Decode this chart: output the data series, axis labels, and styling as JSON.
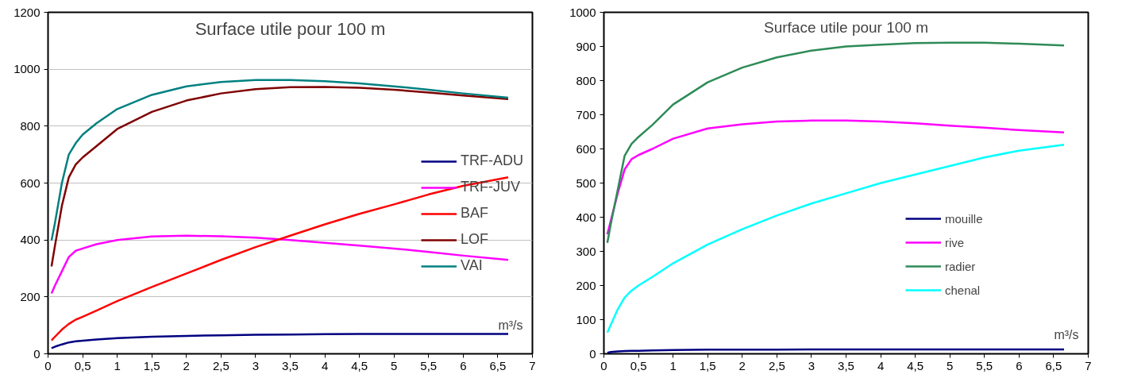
{
  "chart_data": [
    {
      "type": "line",
      "title": "Surface utile pour 100 m",
      "xlabel": "m³/s",
      "x": [
        0.05,
        0.1,
        0.2,
        0.3,
        0.4,
        0.5,
        0.7,
        1,
        1.5,
        2,
        2.5,
        3,
        3.5,
        4,
        4.5,
        5,
        5.5,
        6,
        6.65
      ],
      "series": [
        {
          "name": "TRF-ADU",
          "color": "#000080",
          "values": [
            20,
            25,
            33,
            40,
            44,
            46,
            50,
            55,
            60,
            63,
            65,
            67,
            68,
            69,
            70,
            70,
            70,
            70,
            70
          ]
        },
        {
          "name": "TRF-JUV",
          "color": "#ff00ff",
          "values": [
            212,
            240,
            290,
            340,
            362,
            370,
            385,
            400,
            412,
            415,
            413,
            408,
            400,
            390,
            380,
            370,
            358,
            345,
            330
          ]
        },
        {
          "name": "BAF",
          "color": "#ff0000",
          "values": [
            47,
            60,
            85,
            105,
            120,
            130,
            152,
            185,
            235,
            282,
            330,
            375,
            415,
            455,
            492,
            525,
            560,
            590,
            620
          ]
        },
        {
          "name": "LOF",
          "color": "#800000",
          "values": [
            307,
            380,
            520,
            620,
            665,
            690,
            730,
            790,
            850,
            890,
            915,
            930,
            937,
            938,
            935,
            928,
            918,
            908,
            895
          ]
        },
        {
          "name": "VAI",
          "color": "#008080",
          "values": [
            398,
            460,
            600,
            700,
            740,
            770,
            810,
            860,
            910,
            940,
            955,
            962,
            962,
            958,
            950,
            940,
            928,
            915,
            900
          ]
        }
      ],
      "xlim": [
        0,
        7
      ],
      "xticks": [
        0,
        {
          "value": 0.5,
          "label": "0,5"
        },
        1,
        {
          "value": 1.5,
          "label": "1,5"
        },
        2,
        {
          "value": 2.5,
          "label": "2,5"
        },
        3,
        {
          "value": 3.5,
          "label": "3,5"
        },
        4,
        {
          "value": 4.5,
          "label": "4,5"
        },
        5,
        {
          "value": 5.5,
          "label": "5,5"
        },
        6,
        {
          "value": 6.5,
          "label": "6,5"
        },
        7
      ],
      "ylim": [
        0,
        1200
      ],
      "yticks": [
        0,
        200,
        400,
        600,
        800,
        1000,
        1200
      ],
      "grid": "y",
      "legend": "right",
      "marker": "none",
      "line_style": "solid"
    },
    {
      "type": "line",
      "title": "Surface utile pour 100 m",
      "xlabel": "m³/s",
      "x": [
        0.05,
        0.1,
        0.2,
        0.3,
        0.4,
        0.5,
        0.7,
        1,
        1.5,
        2,
        2.5,
        3,
        3.5,
        4,
        4.5,
        5,
        5.5,
        6,
        6.65
      ],
      "series": [
        {
          "name": "mouille",
          "color": "#000080",
          "values": [
            3,
            5,
            7,
            8,
            9,
            9,
            10,
            11,
            12,
            12,
            12,
            13,
            13,
            13,
            13,
            13,
            13,
            13,
            13
          ]
        },
        {
          "name": "rive",
          "color": "#ff00ff",
          "values": [
            350,
            390,
            470,
            540,
            570,
            582,
            600,
            630,
            660,
            672,
            680,
            683,
            683,
            680,
            675,
            668,
            662,
            655,
            648
          ]
        },
        {
          "name": "radier",
          "color": "#2e8b57",
          "values": [
            325,
            380,
            480,
            580,
            615,
            635,
            670,
            730,
            795,
            838,
            868,
            888,
            900,
            905,
            910,
            911,
            911,
            908,
            903
          ]
        },
        {
          "name": "chenal",
          "color": "#00ffff",
          "values": [
            62,
            85,
            130,
            165,
            185,
            200,
            225,
            265,
            320,
            365,
            405,
            440,
            470,
            500,
            525,
            550,
            575,
            595,
            612
          ]
        }
      ],
      "xlim": [
        0,
        7
      ],
      "xticks": [
        0,
        {
          "value": 0.5,
          "label": "0,5"
        },
        1,
        {
          "value": 1.5,
          "label": "1,5"
        },
        2,
        {
          "value": 2.5,
          "label": "2,5"
        },
        3,
        {
          "value": 3.5,
          "label": "3,5"
        },
        4,
        {
          "value": 4.5,
          "label": "4,5"
        },
        5,
        {
          "value": 5.5,
          "label": "5,5"
        },
        6,
        {
          "value": 6.5,
          "label": "6,5"
        },
        7
      ],
      "ylim": [
        0,
        1000
      ],
      "yticks": [
        0,
        100,
        200,
        300,
        400,
        500,
        600,
        700,
        800,
        900,
        1000
      ],
      "grid": false,
      "legend": "bottom right",
      "marker": "none",
      "line_style": "solid"
    }
  ]
}
